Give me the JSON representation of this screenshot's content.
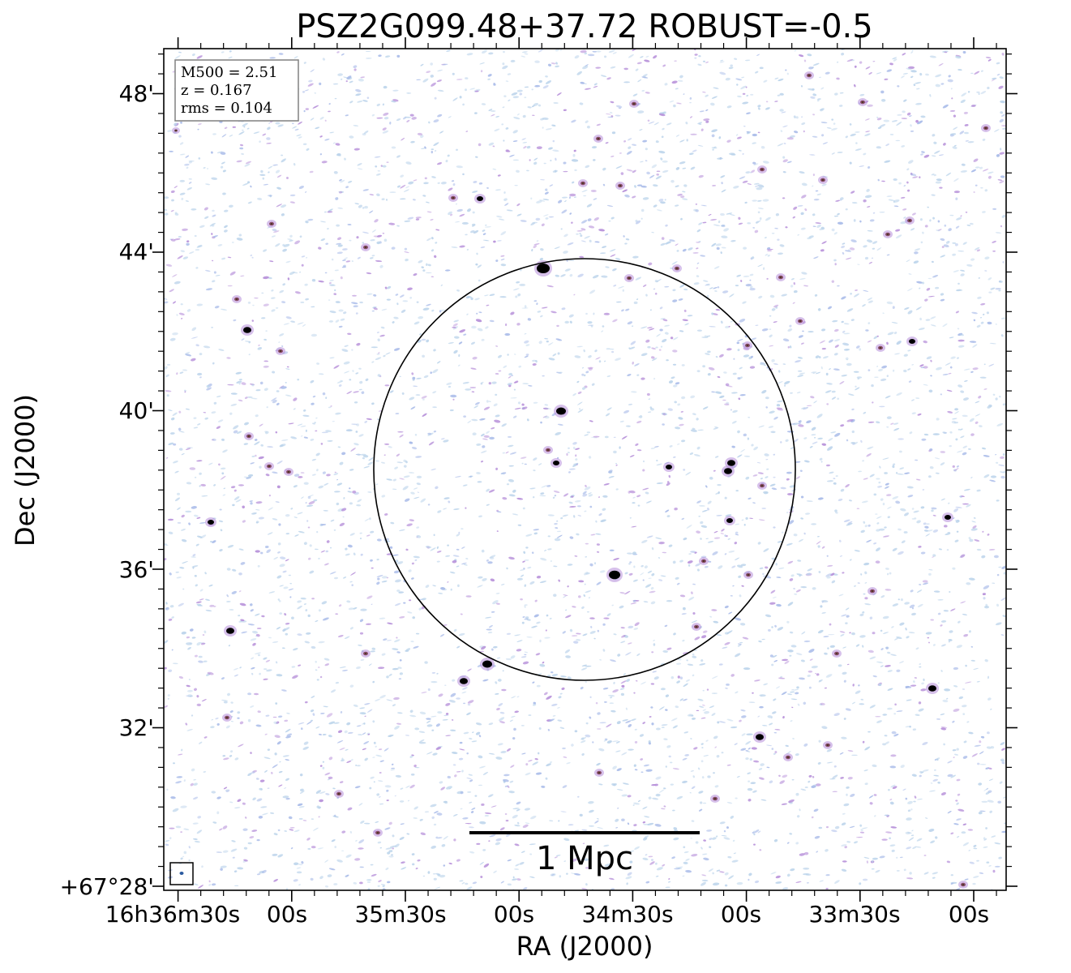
{
  "chart_data": {
    "type": "image",
    "title": "PSZ2G099.48+37.72 ROBUST=-0.5",
    "xlabel": "RA (J2000)",
    "ylabel": "Dec (J2000)",
    "x_tick_labels": [
      "16h36m30s",
      "00s",
      "35m30s",
      "00s",
      "34m30s",
      "00s",
      "33m30s",
      "00s"
    ],
    "y_tick_labels": [
      "+67°28'",
      "32'",
      "36'",
      "40'",
      "44'",
      "48'"
    ],
    "y_ticks_arcmin": [
      28,
      32,
      36,
      40,
      44,
      48
    ],
    "info_box": {
      "lines": [
        "M500 = 2.51",
        "z = 0.167",
        "rms = 0.104"
      ]
    },
    "scale_bar": {
      "label": "1 Mpc"
    },
    "colors": {
      "noise_light": "#b9d2ea",
      "noise_mid": "#a6b9e8",
      "noise_purple": "#b48cd8",
      "source_mid": "#8a4a6a",
      "source_core": "#000000",
      "circle": "#000000"
    }
  }
}
